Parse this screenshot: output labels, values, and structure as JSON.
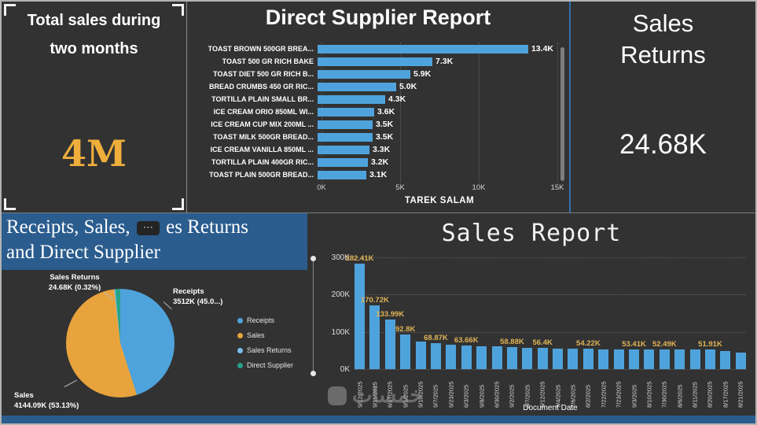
{
  "colors": {
    "background": "#323232",
    "bar_blue": "#4FA3DC",
    "gold": "#E0B457",
    "title_blue": "#2B5C8E",
    "value_gold": "#EFAE3B"
  },
  "ui": {
    "total_sales_card": {
      "title": "Total sales during two months",
      "value": "4M"
    },
    "sales_returns_card": {
      "title": "Sales Returns",
      "value": "24.68K"
    },
    "combo_title": {
      "before": "Receipts, Sales,",
      "more_options": "⋯",
      "after": "es Returns",
      "line2": "and Direct Supplier",
      "full_title": "Receipts, Sales, Sales Returns and Direct Supplier"
    },
    "watermark": "خمسات"
  },
  "chart_data": [
    {
      "type": "bar",
      "orientation": "horizontal",
      "title": "Direct Supplier Report",
      "footer": "TAREK SALAM",
      "categories": [
        "TOAST BROWN 500GR BREA...",
        "TOAST 500 GR RICH BAKE",
        "TOAST DIET 500 GR RICH B...",
        "BREAD CRUMBS 450 GR RIC...",
        "TORTILLA PLAIN SMALL BR...",
        "ICE CREAM ORIO 850ML WI...",
        "ICE CREAM CUP MIX 200ML ...",
        "TOAST MILK 500GR BREAD...",
        "ICE CREAM VANILLA 850ML ...",
        "TORTILLA PLAIN 400GR RIC...",
        "TOAST PLAIN 500GR BREAD..."
      ],
      "values": [
        13.4,
        7.3,
        5.9,
        5.0,
        4.3,
        3.6,
        3.5,
        3.5,
        3.3,
        3.2,
        3.1
      ],
      "value_labels": [
        "13.4K",
        "7.3K",
        "5.9K",
        "5.0K",
        "4.3K",
        "3.6K",
        "3.5K",
        "3.5K",
        "3.3K",
        "3.2K",
        "3.1K"
      ],
      "x_ticks": [
        "0K",
        "5K",
        "10K",
        "15K"
      ],
      "xlim": [
        0,
        15
      ],
      "unit": "K",
      "grid": "dotted-vertical"
    },
    {
      "type": "pie",
      "title": "Receipts, Sales, Sales Returns and Direct Supplier",
      "slices": [
        {
          "name": "Receipts",
          "pct": 45.05,
          "value_label": "3512K (45.0...)",
          "color": "#4FA3DC"
        },
        {
          "name": "Sales",
          "pct": 53.13,
          "value_label": "4144.09K (53.13%)",
          "color": "#E8A33D"
        },
        {
          "name": "Sales Returns",
          "pct": 0.32,
          "value_label": "24.68K (0.32%)",
          "color": "#79BFEA"
        },
        {
          "name": "Direct Supplier",
          "pct": 1.5,
          "value_label": "",
          "color": "#27A389"
        }
      ],
      "callouts": {
        "sales_returns": {
          "line1": "Sales Returns",
          "line2": "24.68K (0.32%)"
        },
        "receipts": {
          "line1": "Receipts",
          "line2": "3512K (45.0...)"
        },
        "sales": {
          "line1": "Sales",
          "line2": "4144.09K (53.13%)"
        }
      },
      "legend": [
        "Receipts",
        "Sales",
        "Sales Returns",
        "Direct Supplier"
      ],
      "legend_position": "right"
    },
    {
      "type": "bar",
      "orientation": "vertical",
      "title": "Sales Report",
      "xlabel": "Document Date",
      "y_ticks": [
        "300K",
        "200K",
        "100K",
        "0K"
      ],
      "ylim": [
        0,
        300
      ],
      "unit": "K",
      "grid": "dotted-horizontal",
      "x": [
        "9/12/2025",
        "9/11/2025",
        "6/17/2025",
        "9/1/2025",
        "9/10/2025",
        "9/7/2025",
        "9/23/2025",
        "6/3/2025",
        "9/8/2025",
        "6/30/2025",
        "9/2/2025",
        "8/7/2025",
        "6/12/2025",
        "9/4/2025",
        "7/6/2025",
        "8/2/2025",
        "7/22/2025",
        "7/23/2025",
        "9/3/2025",
        "8/10/2025",
        "7/30/2025",
        "8/6/2025",
        "8/11/2025",
        "8/20/2025",
        "8/17/2025",
        "8/21/2025"
      ],
      "values": [
        282.41,
        170.72,
        133.99,
        92.8,
        74,
        68.87,
        66,
        63.66,
        62,
        60.5,
        58.88,
        57.6,
        56.4,
        55.6,
        54.9,
        54.22,
        53.8,
        53.6,
        53.41,
        53,
        52.49,
        52.2,
        52,
        51.91,
        48,
        45
      ],
      "value_labels": [
        "282.41K",
        "170.72K",
        "133.99K",
        "92.8K",
        "",
        "68.87K",
        "",
        "63.66K",
        "",
        "",
        "58.88K",
        "",
        "56.4K",
        "",
        "",
        "54.22K",
        "",
        "",
        "53.41K",
        "",
        "52.49K",
        "",
        "",
        "51.91K",
        "",
        ""
      ]
    }
  ]
}
